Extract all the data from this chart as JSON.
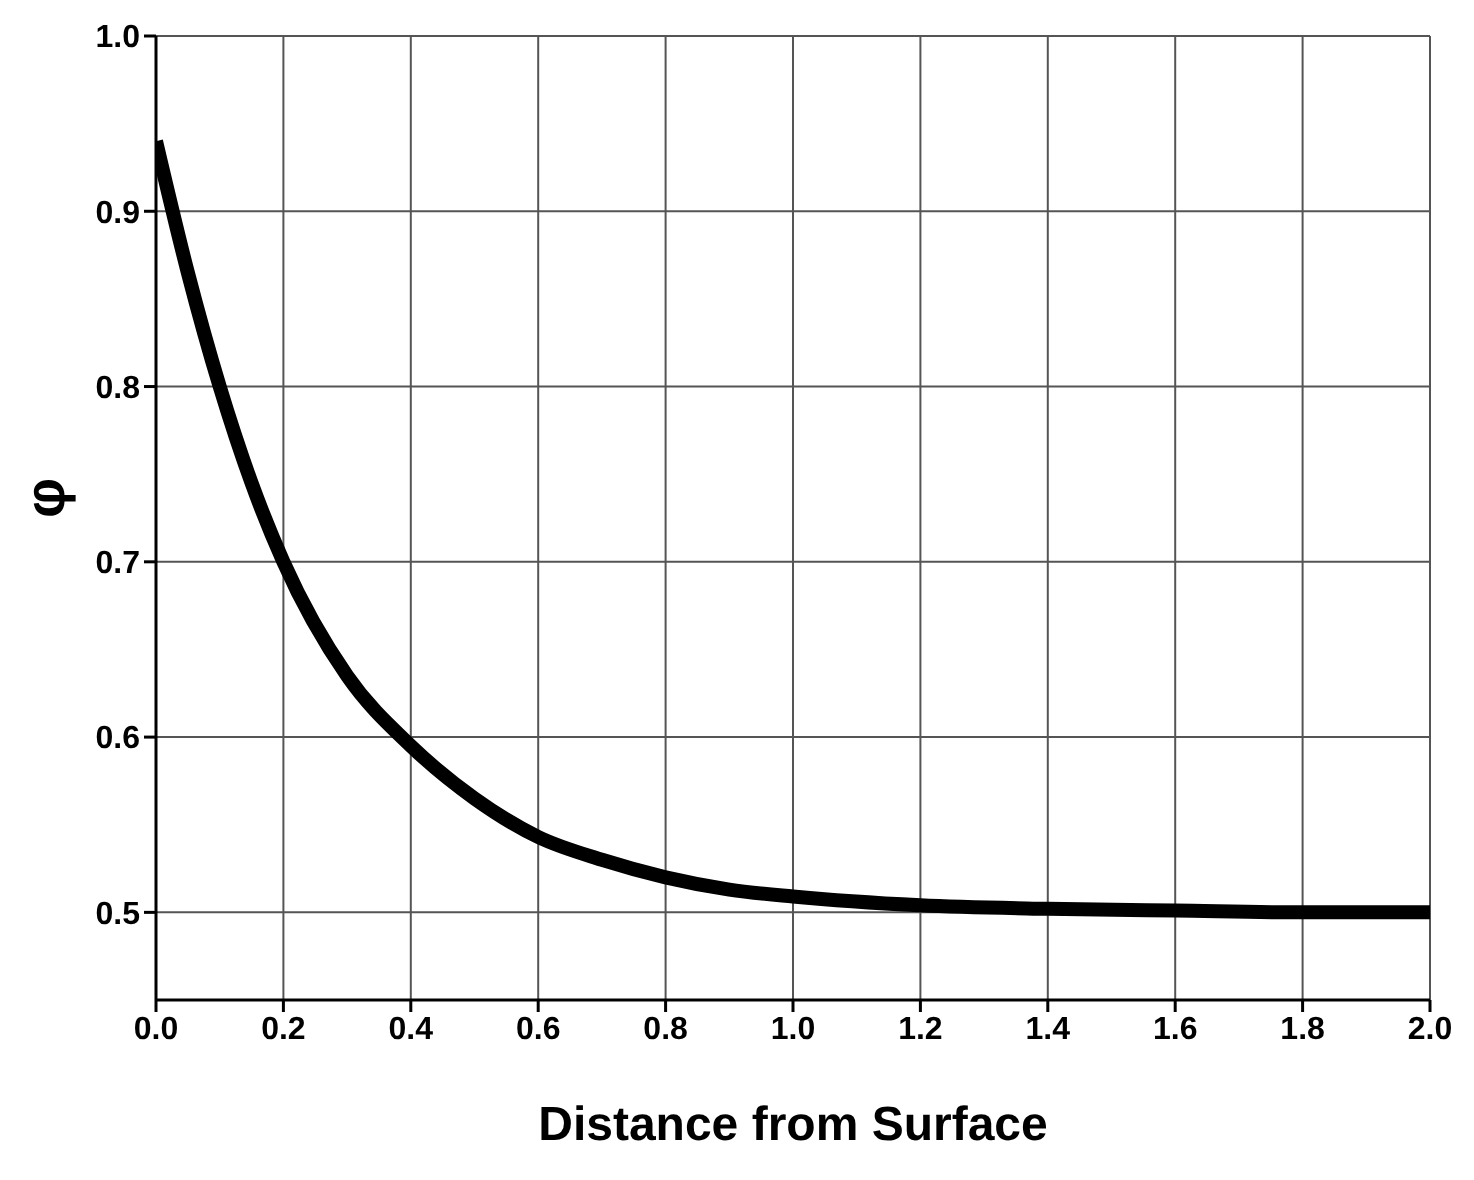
{
  "chart_data": {
    "type": "line",
    "xlabel": "Distance from Surface",
    "ylabel": "φ",
    "x": [
      0,
      0.05,
      0.1,
      0.15,
      0.2,
      0.3,
      0.4,
      0.5,
      0.6,
      0.7,
      0.8,
      0.9,
      1.0,
      1.2,
      1.4,
      1.6,
      1.8,
      2.0
    ],
    "series": [
      {
        "color": "#000000",
        "values": [
          0.94,
          0.865,
          0.8,
          0.745,
          0.7,
          0.635,
          0.595,
          0.565,
          0.543,
          0.53,
          0.52,
          0.513,
          0.509,
          0.504,
          0.502,
          0.501,
          0.5,
          0.5
        ]
      }
    ],
    "xlim": [
      0,
      2
    ],
    "ylim": [
      0.45,
      1.0
    ],
    "xticks": [
      {
        "value": 0,
        "label": "0.0"
      },
      {
        "value": 0.2,
        "label": "0.2"
      },
      {
        "value": 0.4,
        "label": "0.4"
      },
      {
        "value": 0.6,
        "label": "0.6"
      },
      {
        "value": 0.8,
        "label": "0.8"
      },
      {
        "value": 1.0,
        "label": "1.0"
      },
      {
        "value": 1.2,
        "label": "1.2"
      },
      {
        "value": 1.4,
        "label": "1.4"
      },
      {
        "value": 1.6,
        "label": "1.6"
      },
      {
        "value": 1.8,
        "label": "1.8"
      },
      {
        "value": 2.0,
        "label": "2.0"
      }
    ],
    "yticks": [
      {
        "value": 0.5,
        "label": "0.5"
      },
      {
        "value": 0.6,
        "label": "0.6"
      },
      {
        "value": 0.7,
        "label": "0.7"
      },
      {
        "value": 0.8,
        "label": "0.8"
      },
      {
        "value": 0.9,
        "label": "0.9"
      },
      {
        "value": 1.0,
        "label": "1.0"
      }
    ],
    "grid": true,
    "legend": false,
    "marker": "none",
    "line_style": "solid"
  }
}
